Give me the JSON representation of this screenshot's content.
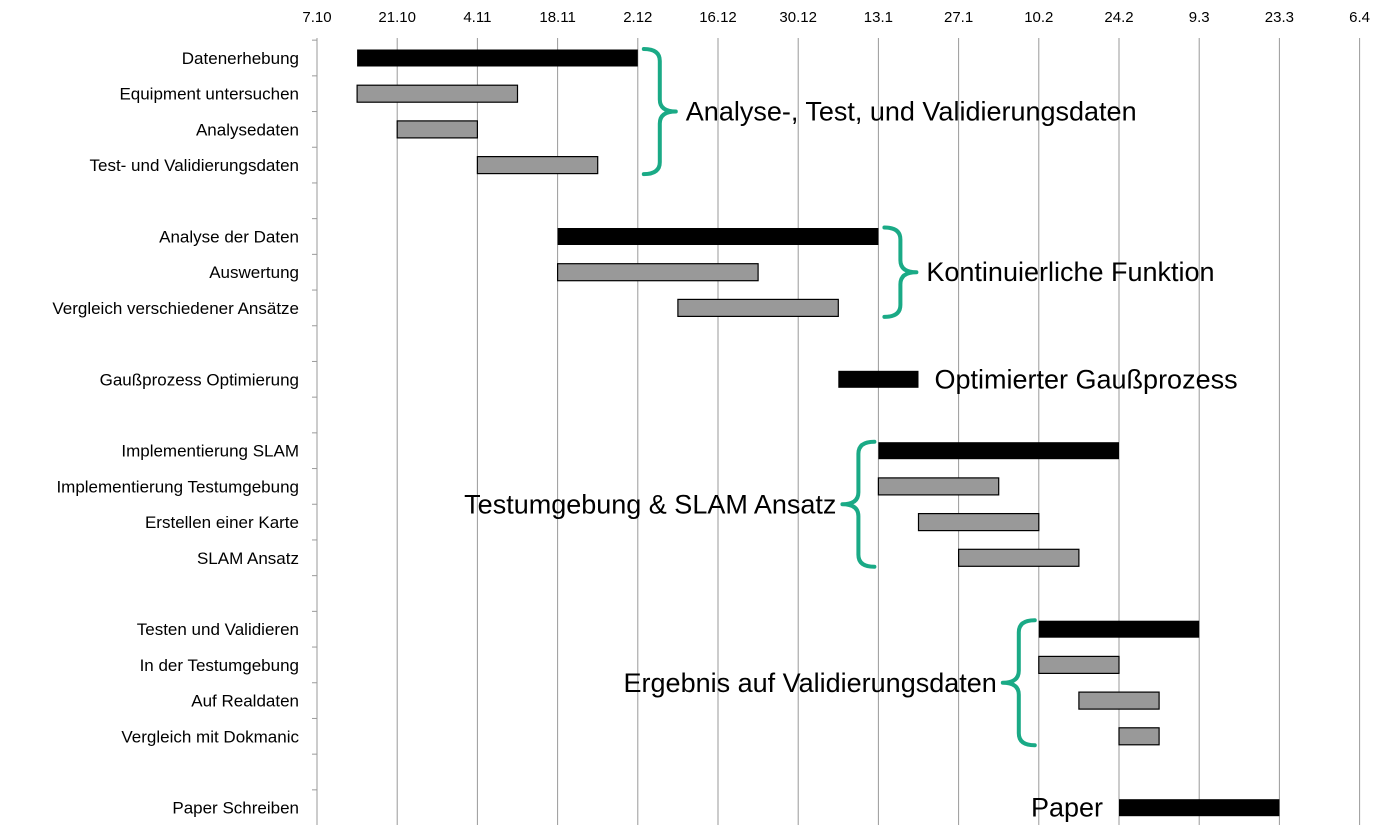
{
  "chart_data": {
    "type": "gantt",
    "ticks": [
      "7.10",
      "21.10",
      "4.11",
      "18.11",
      "2.12",
      "16.12",
      "30.12",
      "13.1",
      "27.1",
      "10.2",
      "24.2",
      "9.3",
      "23.3",
      "6.4"
    ],
    "tasks": [
      {
        "label": "Datenerhebung",
        "start": 0.5,
        "end": 4.0,
        "kind": "main"
      },
      {
        "label": "Equipment untersuchen",
        "start": 0.5,
        "end": 2.5,
        "kind": "sub"
      },
      {
        "label": "Analysedaten",
        "start": 1.0,
        "end": 2.0,
        "kind": "sub"
      },
      {
        "label": "Test- und Validierungsdaten",
        "start": 2.0,
        "end": 3.5,
        "kind": "sub"
      },
      {
        "label": "Analyse der Daten",
        "start": 3.0,
        "end": 7.0,
        "kind": "main"
      },
      {
        "label": "Auswertung",
        "start": 3.0,
        "end": 5.5,
        "kind": "sub"
      },
      {
        "label": "Vergleich verschiedener Ansätze",
        "start": 4.5,
        "end": 6.5,
        "kind": "sub"
      },
      {
        "label": "Gaußprozess Optimierung",
        "start": 6.5,
        "end": 7.5,
        "kind": "main"
      },
      {
        "label": "Implementierung SLAM",
        "start": 7.0,
        "end": 10.0,
        "kind": "main"
      },
      {
        "label": "Implementierung Testumgebung",
        "start": 7.0,
        "end": 8.5,
        "kind": "sub"
      },
      {
        "label": "Erstellen einer Karte",
        "start": 7.5,
        "end": 9.0,
        "kind": "sub"
      },
      {
        "label": "SLAM Ansatz",
        "start": 8.0,
        "end": 9.5,
        "kind": "sub"
      },
      {
        "label": "Testen und Validieren",
        "start": 9.0,
        "end": 11.0,
        "kind": "main"
      },
      {
        "label": "In der Testumgebung",
        "start": 9.0,
        "end": 10.0,
        "kind": "sub"
      },
      {
        "label": "Auf Realdaten",
        "start": 9.5,
        "end": 10.5,
        "kind": "sub"
      },
      {
        "label": "Vergleich mit Dokmanic",
        "start": 10.0,
        "end": 10.5,
        "kind": "sub"
      },
      {
        "label": "Paper Schreiben",
        "start": 10.0,
        "end": 12.0,
        "kind": "main"
      }
    ],
    "annotations": [
      {
        "text": "Analyse-, Test, und Validierungsdaten",
        "rows": [
          0,
          3
        ],
        "side": "right"
      },
      {
        "text": "Kontinuierliche Funktion",
        "rows": [
          4,
          6
        ],
        "side": "right"
      },
      {
        "text": "Optimierter Gaußprozess",
        "rows": [
          7,
          7
        ],
        "side": "none"
      },
      {
        "text": "Testumgebung & SLAM Ansatz",
        "rows": [
          8,
          11
        ],
        "side": "left"
      },
      {
        "text": "Ergebnis auf Validierungsdaten",
        "rows": [
          12,
          15
        ],
        "side": "left"
      },
      {
        "text": "Paper",
        "rows": [
          16,
          16
        ],
        "side": "none"
      }
    ],
    "colors": {
      "main": "#000000",
      "sub": "#999999",
      "brace": "#1aaa86",
      "grid": "#9a9a9a"
    }
  }
}
